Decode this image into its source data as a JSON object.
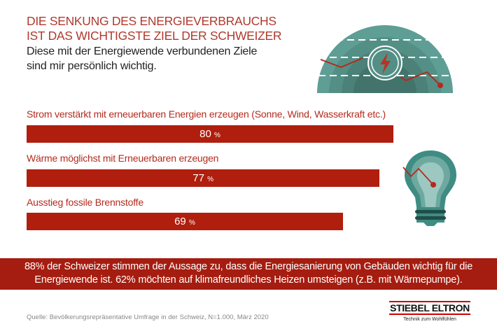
{
  "title_lines": [
    "DIE SENKUNG DES ENERGIEVERBRAUCHS",
    "IST DAS WICHTIGSTE ZIEL DER SCHWEIZER"
  ],
  "subtitle_lines": [
    "Diese mit der Energiewende verbundenen Ziele",
    "sind mir persönlich wichtig."
  ],
  "chart_data": {
    "type": "bar",
    "orientation": "horizontal",
    "categories": [
      "Strom verstärkt mit erneuerbaren Energien erzeugen (Sonne, Wind, Wasserkraft etc.)",
      "Wärme möglichst mit Erneuerbaren erzeugen",
      "Ausstieg fossile Brennstoffe"
    ],
    "values": [
      80,
      77,
      69
    ],
    "value_labels": [
      "80",
      "77",
      "69"
    ],
    "unit": "%",
    "bar_color": "#b01e0e",
    "grid": false
  },
  "banner": {
    "lines": [
      "88% der Schweizer stimmen der Aussage zu, dass die Energiesanierung von Gebäuden wichtig für die",
      "Energiewende ist. 62% möchten auf klimafreundliches Heizen umsteigen (z.B. mit Wärmepumpe)."
    ],
    "color": "#a51d10"
  },
  "source": "Quelle: Bevölkerungsrepräsentative Umfrage in der Schweiz, N=1.000, März 2020",
  "logo": {
    "name": "STIEBEL ELTRON",
    "tagline": "Technik zum Wohlfühlen"
  },
  "colors": {
    "accent": "#b03a2e",
    "teal": "#4e8f86"
  }
}
